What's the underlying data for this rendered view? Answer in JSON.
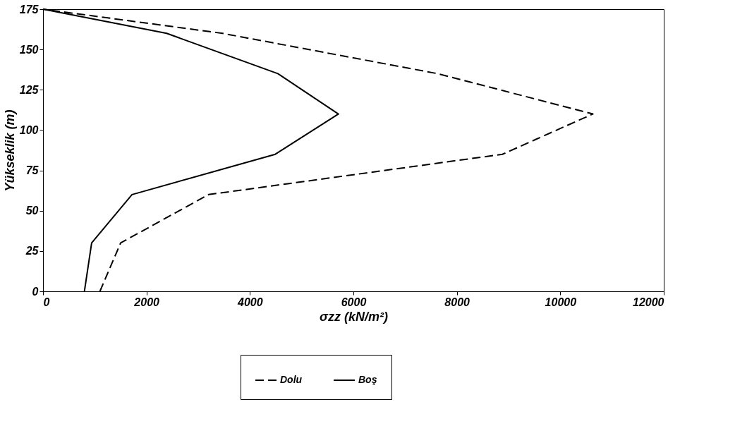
{
  "chart_data": {
    "type": "line",
    "xlabel": "σzz (kN/m²)",
    "ylabel": "Yükseklik (m)",
    "xlim": [
      0,
      12000
    ],
    "xticks": [
      0,
      2000,
      4000,
      6000,
      8000,
      10000,
      12000
    ],
    "ylim": [
      0,
      175
    ],
    "yticks": [
      0,
      25,
      50,
      75,
      100,
      125,
      150,
      175
    ],
    "grid": false,
    "legend": "bottom",
    "marker": "none",
    "series": [
      {
        "name": "Dolu",
        "color": "#000000",
        "line_style": "dashed",
        "x": [
          1100,
          1500,
          3200,
          8880,
          10630,
          7630,
          3470,
          0
        ],
        "values": [
          0,
          30,
          60,
          85,
          110,
          135,
          160,
          175
        ]
      },
      {
        "name": "Boş",
        "color": "#000000",
        "line_style": "solid",
        "x": [
          800,
          940,
          1720,
          4490,
          5710,
          4540,
          2390,
          0
        ],
        "values": [
          0,
          30,
          60,
          85,
          110,
          135,
          160,
          175
        ]
      }
    ]
  }
}
